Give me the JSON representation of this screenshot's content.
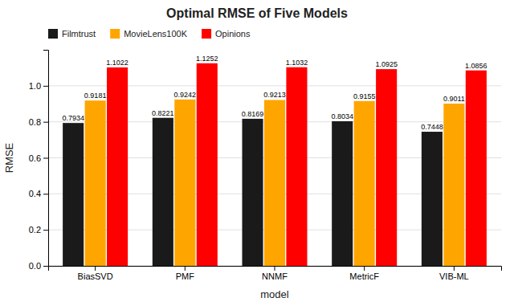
{
  "chart_data": {
    "type": "bar",
    "title": "Optimal RMSE of Five Models",
    "xlabel": "model",
    "ylabel": "RMSE",
    "categories": [
      "BiasSVD",
      "PMF",
      "NNMF",
      "MetricF",
      "VIB-ML"
    ],
    "series": [
      {
        "name": "Filmtrust",
        "color": "#1A1A1A",
        "values": [
          0.7934,
          0.8221,
          0.8169,
          0.8034,
          0.7448
        ]
      },
      {
        "name": "MovieLens100K",
        "color": "#FFA500",
        "values": [
          0.9181,
          0.9242,
          0.9213,
          0.9155,
          0.9011
        ]
      },
      {
        "name": "Opinions",
        "color": "#FF0000",
        "values": [
          1.1022,
          1.1252,
          1.1032,
          1.0925,
          1.0856
        ]
      }
    ],
    "ylim": [
      0.0,
      1.2
    ],
    "yticks": [
      {
        "value": 0.0,
        "label": "0.0"
      },
      0.2,
      0.4,
      0.6,
      0.8,
      {
        "value": 1.0,
        "label": "1.0"
      }
    ],
    "grid": true,
    "legend": "upper left",
    "data_labels": true
  }
}
